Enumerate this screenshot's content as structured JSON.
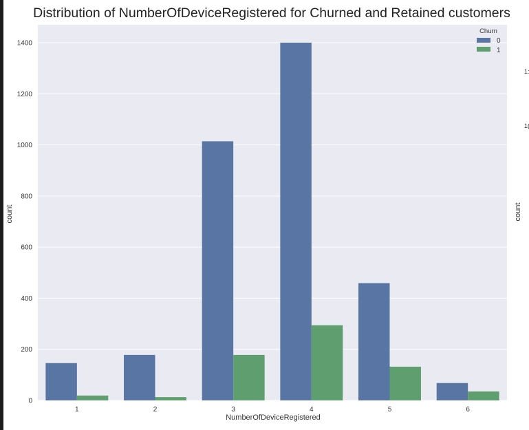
{
  "chart_data": {
    "type": "bar",
    "title": "Distribution of NumberOfDeviceRegistered for Churned and Retained customers",
    "xlabel": "NumberOfDeviceRegistered",
    "ylabel": "count",
    "categories": [
      "1",
      "2",
      "3",
      "4",
      "5",
      "6"
    ],
    "series": [
      {
        "name": "0",
        "color": "#5975a4",
        "values": [
          146,
          178,
          1014,
          1400,
          459,
          68
        ]
      },
      {
        "name": "1",
        "color": "#5f9e6e",
        "values": [
          19,
          13,
          178,
          294,
          132,
          35
        ]
      }
    ],
    "yticks": [
      0,
      200,
      400,
      600,
      800,
      1000,
      1200,
      1400
    ],
    "ylim": [
      0,
      1470
    ],
    "grid": true,
    "legend": {
      "title": "Churn",
      "placement": "top-right"
    },
    "background": "#eaeaf2"
  },
  "adjacent_chart": {
    "ylabel": "count",
    "tick_fragments": [
      "1:",
      "1("
    ]
  }
}
